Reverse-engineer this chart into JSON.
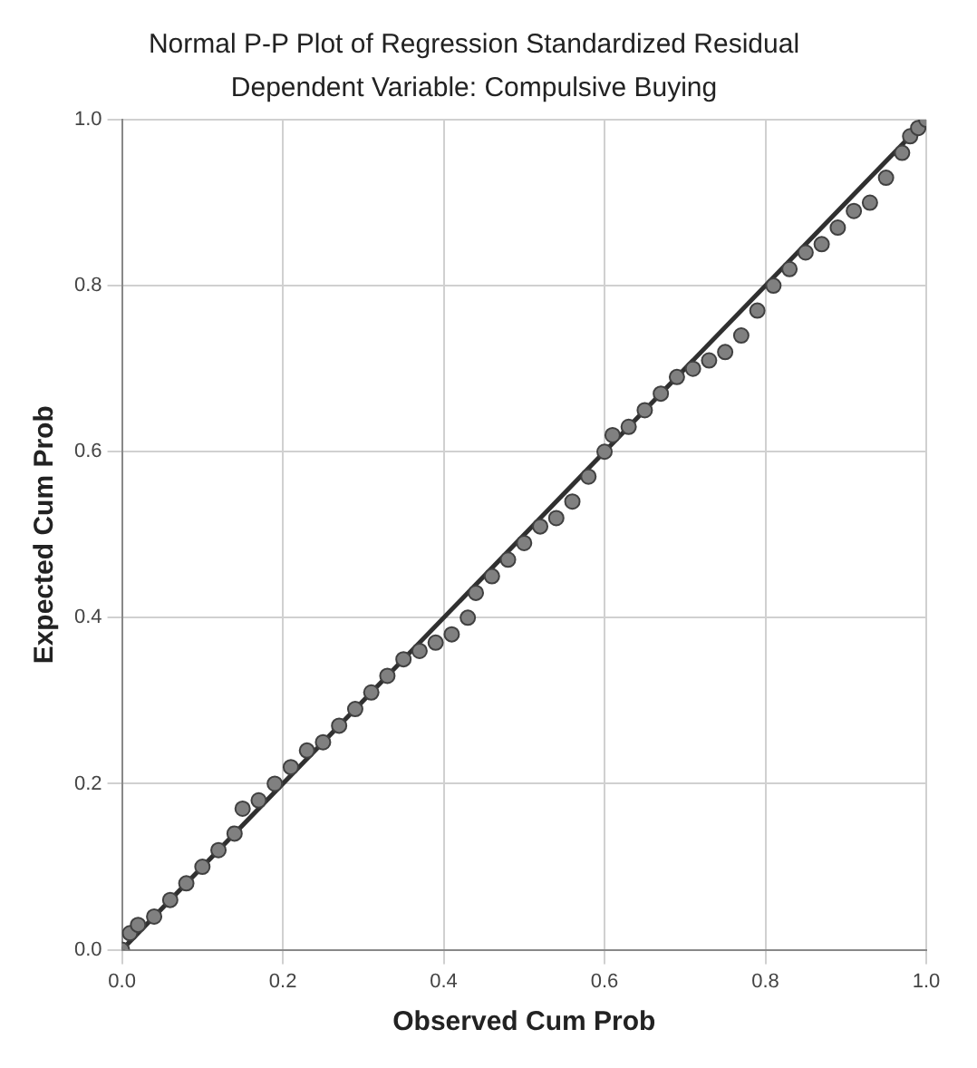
{
  "chart_data": {
    "type": "scatter",
    "title": "Normal P-P Plot of Regression Standardized Residual",
    "subtitle": "Dependent Variable: Compulsive Buying",
    "xlabel": "Observed Cum Prob",
    "ylabel": "Expected Cum Prob",
    "xlim": [
      0,
      1
    ],
    "ylim": [
      0,
      1
    ],
    "xticks": [
      {
        "value": 0,
        "label": "0.0"
      },
      {
        "value": 0.2,
        "label": "0.2"
      },
      {
        "value": 0.4,
        "label": "0.4"
      },
      {
        "value": 0.6,
        "label": "0.6"
      },
      {
        "value": 0.8,
        "label": "0.8"
      },
      {
        "value": 1,
        "label": "1.0"
      }
    ],
    "yticks": [
      {
        "value": 0,
        "label": "0.0"
      },
      {
        "value": 0.2,
        "label": "0.2"
      },
      {
        "value": 0.4,
        "label": "0.4"
      },
      {
        "value": 0.6,
        "label": "0.6"
      },
      {
        "value": 0.8,
        "label": "0.8"
      },
      {
        "value": 1,
        "label": "1.0"
      }
    ],
    "grid": true,
    "legend": false,
    "series": [
      {
        "type": "scatter",
        "marker": "circle",
        "color": "#808080",
        "x": [
          0.0,
          0.01,
          0.02,
          0.04,
          0.06,
          0.08,
          0.1,
          0.12,
          0.14,
          0.15,
          0.17,
          0.19,
          0.21,
          0.23,
          0.25,
          0.27,
          0.29,
          0.31,
          0.33,
          0.35,
          0.37,
          0.39,
          0.41,
          0.43,
          0.44,
          0.46,
          0.48,
          0.5,
          0.52,
          0.54,
          0.56,
          0.58,
          0.6,
          0.61,
          0.63,
          0.65,
          0.67,
          0.69,
          0.71,
          0.73,
          0.75,
          0.77,
          0.79,
          0.81,
          0.83,
          0.85,
          0.87,
          0.89,
          0.91,
          0.93,
          0.95,
          0.97,
          0.98,
          0.99,
          1.0
        ],
        "values": [
          0.0,
          0.02,
          0.03,
          0.04,
          0.06,
          0.08,
          0.1,
          0.12,
          0.14,
          0.17,
          0.18,
          0.2,
          0.22,
          0.24,
          0.25,
          0.27,
          0.29,
          0.31,
          0.33,
          0.35,
          0.36,
          0.37,
          0.38,
          0.4,
          0.43,
          0.45,
          0.47,
          0.49,
          0.51,
          0.52,
          0.54,
          0.57,
          0.6,
          0.62,
          0.63,
          0.65,
          0.67,
          0.69,
          0.7,
          0.71,
          0.72,
          0.74,
          0.77,
          0.8,
          0.82,
          0.84,
          0.85,
          0.87,
          0.89,
          0.9,
          0.93,
          0.96,
          0.98,
          0.99,
          1.0
        ]
      },
      {
        "type": "line",
        "marker": "none",
        "color": "#303030",
        "x": [
          0,
          1
        ],
        "values": [
          0,
          1
        ]
      }
    ]
  }
}
